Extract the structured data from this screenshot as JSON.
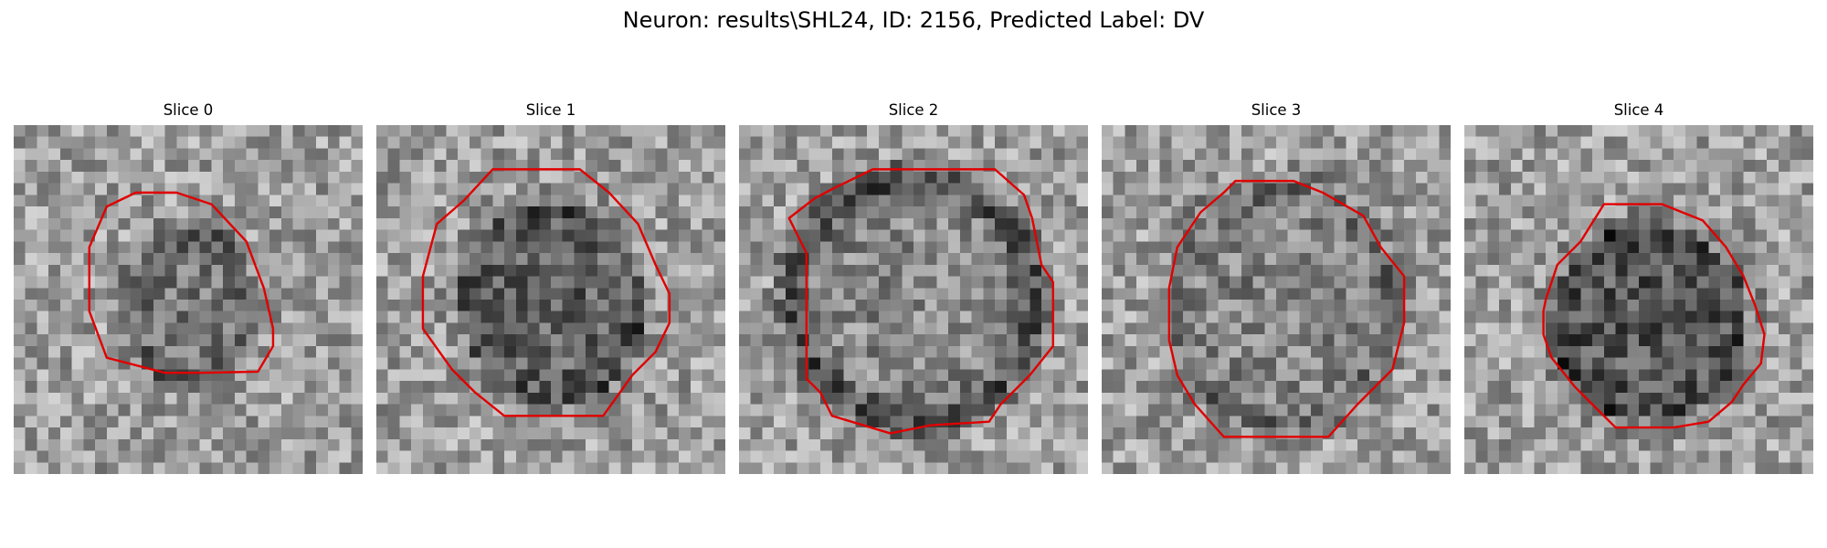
{
  "figure": {
    "title": "Neuron: results\\SHL24, ID: 2156, Predicted Label: DV",
    "contour_color": "#e00000",
    "colormap": "gray"
  },
  "panels": [
    {
      "title": "Slice 0"
    },
    {
      "title": "Slice 1"
    },
    {
      "title": "Slice 2"
    },
    {
      "title": "Slice 3"
    },
    {
      "title": "Slice 4"
    }
  ]
}
